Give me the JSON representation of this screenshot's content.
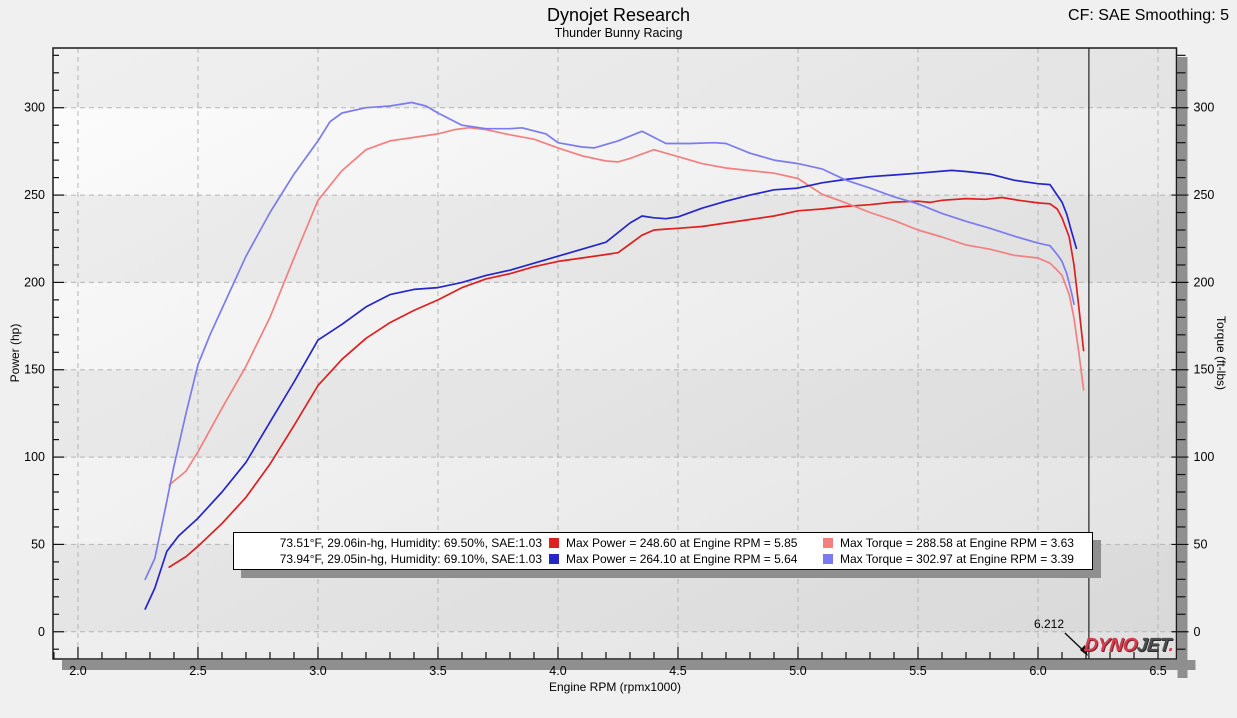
{
  "header": {
    "title": "Dynojet Research",
    "subtitle": "Thunder Bunny Racing",
    "cf_label": "CF: SAE Smoothing: 5"
  },
  "axes": {
    "x": {
      "label": "Engine RPM (rpmx1000)",
      "min": 1.896,
      "max": 6.577,
      "major_ticks": [
        "2.0",
        "2.5",
        "3.0",
        "3.5",
        "4.0",
        "4.5",
        "5.0",
        "5.5",
        "6.0",
        "6.5"
      ],
      "minor_step": 0.1
    },
    "y_left": {
      "label": "Power (hp)",
      "min": -15.6,
      "max": 334.2,
      "major_ticks": [
        "0",
        "50",
        "100",
        "150",
        "200",
        "250",
        "300"
      ],
      "minor_step": 10
    },
    "y_right": {
      "label": "Torque (ft-lbs)",
      "min": -15.6,
      "max": 334.2,
      "major_ticks": [
        "0",
        "50",
        "100",
        "150",
        "200",
        "250",
        "300"
      ],
      "minor_step": 10
    }
  },
  "cursor": {
    "rpm": 6.212,
    "label": "6.212"
  },
  "logo": {
    "part1": "DYNO",
    "part2": "JET",
    "dot": "."
  },
  "legend": {
    "runs": [
      {
        "env": "73.51°F, 29.06in-hg, Humidity: 69.50%, SAE:1.03",
        "power_color": "#e01f1f",
        "power_label": "Max Power = 248.60 at Engine RPM = 5.85",
        "torque_color": "#f57f7f",
        "torque_label": "Max Torque = 288.58 at Engine RPM = 3.63"
      },
      {
        "env": "73.94°F, 29.05in-hg, Humidity: 69.10%, SAE:1.03",
        "power_color": "#2525cc",
        "power_label": "Max Power = 264.10 at Engine RPM = 5.64",
        "torque_color": "#7b7bf0",
        "torque_label": "Max Torque = 302.97 at Engine RPM = 3.39"
      }
    ]
  },
  "chart_data": {
    "type": "line",
    "title": "Dynojet Research — Thunder Bunny Racing",
    "xlabel": "Engine RPM (rpmx1000)",
    "ylabel_left": "Power (hp)",
    "ylabel_right": "Torque (ft-lbs)",
    "xlim": [
      1.896,
      6.577
    ],
    "ylim": [
      -15.6,
      334.2
    ],
    "grid": "dashed major gridlines",
    "legend_position": "bottom-center box",
    "cursor_rpm": 6.212,
    "series": [
      {
        "name": "Run 1 Power (hp)",
        "color": "#e01f1f",
        "max": {
          "value": 248.6,
          "rpm": 5.85
        },
        "points": [
          [
            2.38,
            37
          ],
          [
            2.45,
            43
          ],
          [
            2.5,
            49
          ],
          [
            2.6,
            62
          ],
          [
            2.7,
            77
          ],
          [
            2.8,
            96
          ],
          [
            2.9,
            118
          ],
          [
            3.0,
            141
          ],
          [
            3.1,
            156
          ],
          [
            3.2,
            168
          ],
          [
            3.3,
            177
          ],
          [
            3.4,
            184
          ],
          [
            3.5,
            190
          ],
          [
            3.6,
            197
          ],
          [
            3.7,
            202
          ],
          [
            3.8,
            205
          ],
          [
            3.9,
            209
          ],
          [
            4.0,
            212
          ],
          [
            4.1,
            214
          ],
          [
            4.2,
            216
          ],
          [
            4.25,
            217
          ],
          [
            4.3,
            222
          ],
          [
            4.35,
            227
          ],
          [
            4.4,
            230
          ],
          [
            4.45,
            230.5
          ],
          [
            4.5,
            231
          ],
          [
            4.6,
            232
          ],
          [
            4.7,
            234
          ],
          [
            4.8,
            236
          ],
          [
            4.9,
            238
          ],
          [
            5.0,
            241
          ],
          [
            5.1,
            242
          ],
          [
            5.2,
            243.5
          ],
          [
            5.3,
            244.5
          ],
          [
            5.4,
            246
          ],
          [
            5.5,
            246.5
          ],
          [
            5.55,
            245.8
          ],
          [
            5.6,
            247
          ],
          [
            5.7,
            248
          ],
          [
            5.78,
            247.6
          ],
          [
            5.85,
            248.6
          ],
          [
            5.92,
            247
          ],
          [
            6.0,
            245.5
          ],
          [
            6.05,
            245
          ],
          [
            6.08,
            242
          ],
          [
            6.1,
            237
          ],
          [
            6.13,
            226
          ],
          [
            6.15,
            210
          ],
          [
            6.17,
            186
          ],
          [
            6.19,
            161
          ]
        ]
      },
      {
        "name": "Run 1 Torque (ft-lbs)",
        "color": "#f57f7f",
        "max": {
          "value": 288.58,
          "rpm": 3.63
        },
        "points": [
          [
            2.38,
            84
          ],
          [
            2.45,
            92
          ],
          [
            2.5,
            103
          ],
          [
            2.6,
            128
          ],
          [
            2.7,
            152
          ],
          [
            2.8,
            180
          ],
          [
            2.9,
            214
          ],
          [
            3.0,
            247
          ],
          [
            3.1,
            264
          ],
          [
            3.2,
            276
          ],
          [
            3.3,
            281
          ],
          [
            3.4,
            283
          ],
          [
            3.5,
            285
          ],
          [
            3.57,
            287.5
          ],
          [
            3.63,
            288.6
          ],
          [
            3.7,
            287.5
          ],
          [
            3.8,
            284.5
          ],
          [
            3.9,
            282
          ],
          [
            4.0,
            277
          ],
          [
            4.1,
            272.5
          ],
          [
            4.2,
            269.5
          ],
          [
            4.25,
            269
          ],
          [
            4.3,
            271
          ],
          [
            4.4,
            276
          ],
          [
            4.45,
            274
          ],
          [
            4.5,
            272
          ],
          [
            4.6,
            268
          ],
          [
            4.7,
            265.5
          ],
          [
            4.8,
            264
          ],
          [
            4.9,
            262.5
          ],
          [
            5.0,
            259.5
          ],
          [
            5.1,
            250.5
          ],
          [
            5.2,
            245.5
          ],
          [
            5.3,
            240
          ],
          [
            5.4,
            235.5
          ],
          [
            5.5,
            230
          ],
          [
            5.6,
            226
          ],
          [
            5.7,
            221.5
          ],
          [
            5.8,
            219
          ],
          [
            5.9,
            215.5
          ],
          [
            6.0,
            214
          ],
          [
            6.05,
            211
          ],
          [
            6.08,
            207
          ],
          [
            6.1,
            204
          ],
          [
            6.13,
            193
          ],
          [
            6.15,
            179.5
          ],
          [
            6.17,
            160
          ],
          [
            6.19,
            138.5
          ]
        ]
      },
      {
        "name": "Run 2 Power (hp)",
        "color": "#2525cc",
        "max": {
          "value": 264.1,
          "rpm": 5.64
        },
        "points": [
          [
            2.28,
            13
          ],
          [
            2.32,
            25
          ],
          [
            2.37,
            46
          ],
          [
            2.42,
            55
          ],
          [
            2.5,
            65
          ],
          [
            2.6,
            80
          ],
          [
            2.7,
            97
          ],
          [
            2.8,
            120
          ],
          [
            2.9,
            143
          ],
          [
            3.0,
            167
          ],
          [
            3.1,
            176
          ],
          [
            3.2,
            186
          ],
          [
            3.3,
            193
          ],
          [
            3.4,
            196
          ],
          [
            3.5,
            197
          ],
          [
            3.6,
            200
          ],
          [
            3.7,
            204
          ],
          [
            3.8,
            207
          ],
          [
            3.9,
            211
          ],
          [
            4.0,
            215
          ],
          [
            4.1,
            219
          ],
          [
            4.2,
            223
          ],
          [
            4.3,
            234
          ],
          [
            4.35,
            238
          ],
          [
            4.4,
            237
          ],
          [
            4.45,
            236.5
          ],
          [
            4.5,
            237.5
          ],
          [
            4.6,
            242.5
          ],
          [
            4.7,
            246.5
          ],
          [
            4.8,
            250
          ],
          [
            4.9,
            253
          ],
          [
            5.0,
            254
          ],
          [
            5.1,
            257
          ],
          [
            5.2,
            259
          ],
          [
            5.3,
            260.5
          ],
          [
            5.4,
            261.5
          ],
          [
            5.5,
            262.5
          ],
          [
            5.64,
            264.1
          ],
          [
            5.7,
            263.5
          ],
          [
            5.8,
            262
          ],
          [
            5.9,
            258.5
          ],
          [
            6.0,
            256.5
          ],
          [
            6.05,
            256
          ],
          [
            6.08,
            250
          ],
          [
            6.1,
            246
          ],
          [
            6.12,
            239
          ],
          [
            6.14,
            229
          ],
          [
            6.16,
            219.5
          ]
        ]
      },
      {
        "name": "Run 2 Torque (ft-lbs)",
        "color": "#7b7bf0",
        "max": {
          "value": 302.97,
          "rpm": 3.39
        },
        "points": [
          [
            2.28,
            30
          ],
          [
            2.32,
            42
          ],
          [
            2.36,
            68
          ],
          [
            2.4,
            95
          ],
          [
            2.45,
            125
          ],
          [
            2.5,
            153
          ],
          [
            2.55,
            170
          ],
          [
            2.6,
            185
          ],
          [
            2.7,
            215
          ],
          [
            2.8,
            240
          ],
          [
            2.9,
            262
          ],
          [
            3.0,
            281
          ],
          [
            3.05,
            292
          ],
          [
            3.1,
            297
          ],
          [
            3.2,
            300
          ],
          [
            3.3,
            301
          ],
          [
            3.39,
            303
          ],
          [
            3.45,
            301
          ],
          [
            3.5,
            297
          ],
          [
            3.6,
            290
          ],
          [
            3.7,
            288
          ],
          [
            3.8,
            288
          ],
          [
            3.85,
            288.5
          ],
          [
            3.95,
            285
          ],
          [
            4.0,
            280
          ],
          [
            4.1,
            277.5
          ],
          [
            4.15,
            277
          ],
          [
            4.25,
            281
          ],
          [
            4.35,
            286.5
          ],
          [
            4.45,
            279.5
          ],
          [
            4.55,
            279.5
          ],
          [
            4.65,
            280
          ],
          [
            4.7,
            279.5
          ],
          [
            4.8,
            274
          ],
          [
            4.9,
            270
          ],
          [
            5.0,
            268
          ],
          [
            5.1,
            265
          ],
          [
            5.2,
            258.5
          ],
          [
            5.3,
            254
          ],
          [
            5.4,
            249
          ],
          [
            5.5,
            245
          ],
          [
            5.6,
            239.5
          ],
          [
            5.7,
            235
          ],
          [
            5.8,
            231
          ],
          [
            5.9,
            226.5
          ],
          [
            6.0,
            222.5
          ],
          [
            6.05,
            221
          ],
          [
            6.08,
            216
          ],
          [
            6.1,
            212
          ],
          [
            6.12,
            205
          ],
          [
            6.14,
            194
          ],
          [
            6.15,
            187.5
          ]
        ]
      }
    ]
  }
}
